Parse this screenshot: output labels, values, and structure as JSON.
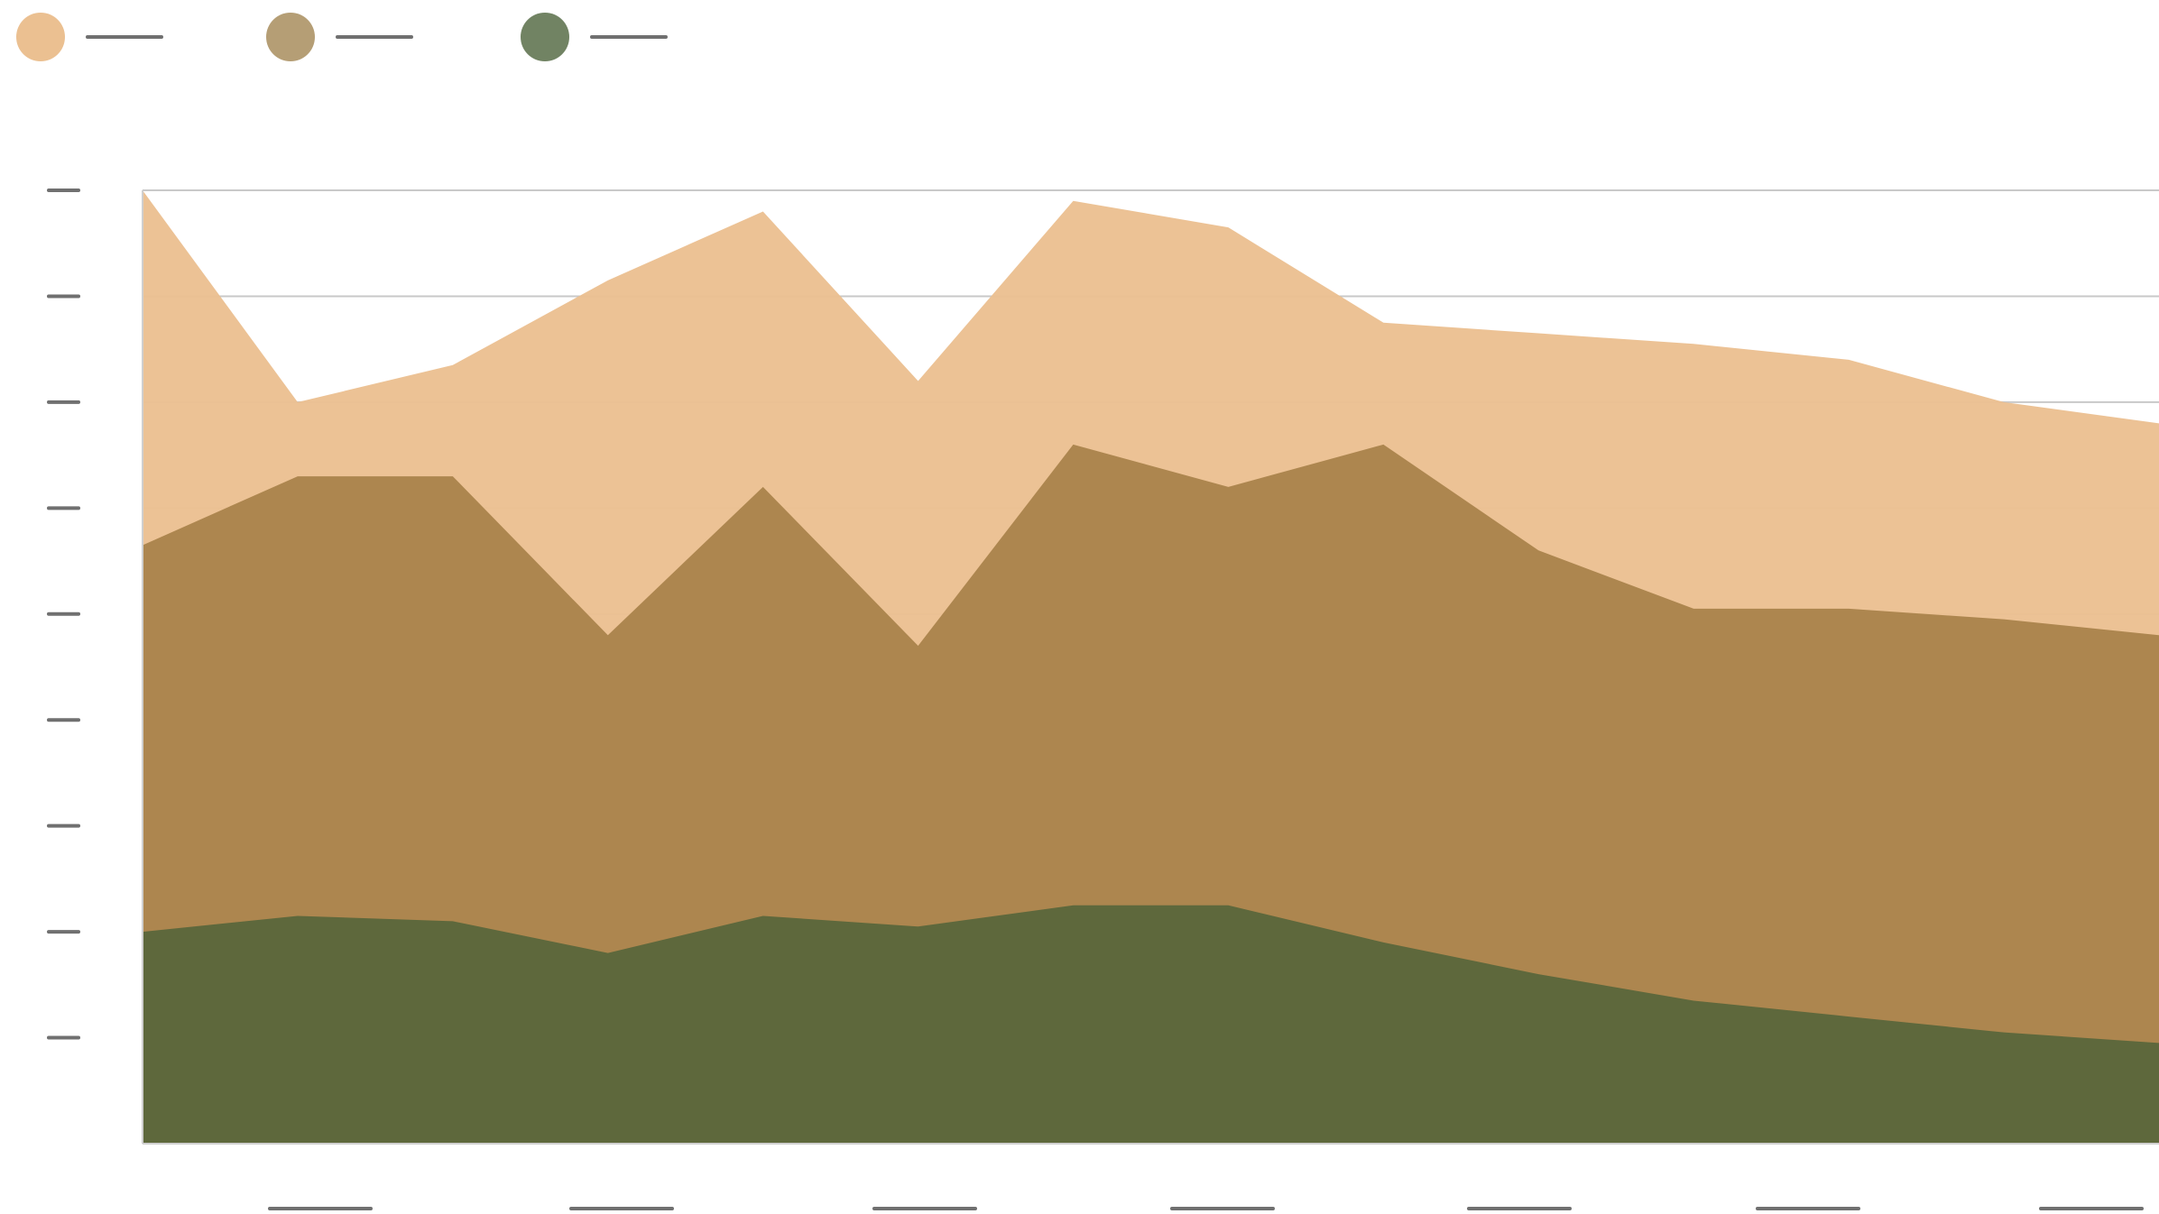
{
  "chart_data": {
    "type": "area",
    "stacked": false,
    "title": "",
    "xlabel": "",
    "ylabel": "",
    "x": [
      0,
      1,
      2,
      3,
      4,
      5,
      6,
      7,
      8,
      9,
      10,
      11,
      12,
      13
    ],
    "x_tick_labels": [
      "",
      "",
      "",
      "",
      "",
      "",
      ""
    ],
    "y_tick_labels": [
      "",
      "",
      "",
      "",
      "",
      "",
      "",
      "",
      ""
    ],
    "y_ticks": [
      100,
      90,
      80,
      70,
      60,
      50,
      40,
      30,
      20
    ],
    "ylim": [
      10,
      100
    ],
    "grid": true,
    "legend_position": "top-left",
    "series": [
      {
        "color": "#ebc091",
        "values": [
          100,
          80,
          83.5,
          91.5,
          98,
          82,
          99,
          96.5,
          87.5,
          86.5,
          85.5,
          84,
          80,
          78
        ]
      },
      {
        "color": "#aa834c",
        "values": [
          66.5,
          73,
          73,
          58,
          72,
          57,
          76,
          72,
          76,
          66,
          60.5,
          60.5,
          59.5,
          58
        ]
      },
      {
        "color": "#5b673b",
        "values": [
          30,
          31.5,
          31,
          28,
          31.5,
          30.5,
          32.5,
          32.5,
          29,
          26,
          23.5,
          22,
          20.5,
          19.5
        ]
      }
    ]
  },
  "legend": {
    "items": [
      {
        "swatch_color": "#ebc091",
        "label": ""
      },
      {
        "swatch_color": "#b59e75",
        "label": ""
      },
      {
        "swatch_color": "#718363",
        "label": ""
      }
    ]
  }
}
